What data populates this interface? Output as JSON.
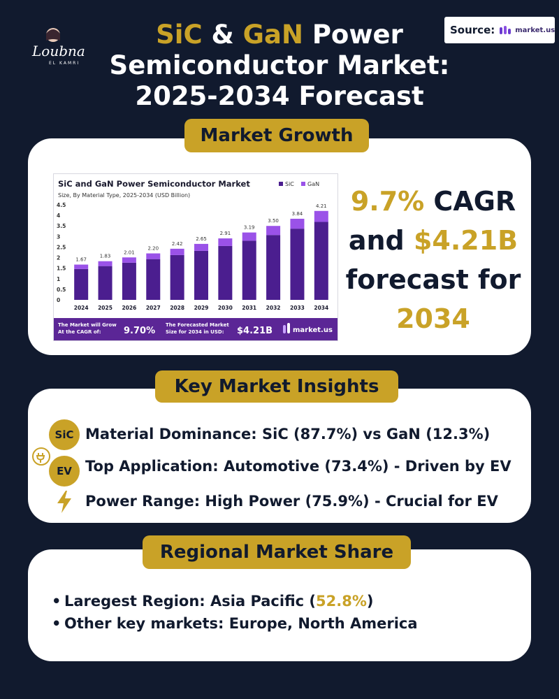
{
  "logo": {
    "script": "Loubna",
    "sub": "EL KAMRI"
  },
  "source": {
    "label": "Source:",
    "logo_text": "market.us"
  },
  "title": {
    "part1_gold": "SiC",
    "part2": " & ",
    "part3_gold": "GaN",
    "part4": " Power",
    "line2": "Semiconductor Market:",
    "line3": "2025-2034 Forecast"
  },
  "sections": {
    "growth": "Market Growth",
    "insights": "Key Market Insights",
    "regional": "Regional Market Share"
  },
  "big_stat": {
    "cagr_value": "9.7%",
    "cagr_label": " CAGR",
    "and": "and ",
    "forecast_value": "$4.21B",
    "forecast_label": "forecast for",
    "year": "2034"
  },
  "insights": [
    {
      "badge": "SiC",
      "icon": "sic-badge-icon",
      "text": "Material Dominance: SiC (87.7%) vs GaN (12.3%)"
    },
    {
      "badge": "EV",
      "icon": "ev-plug-icon",
      "text": "Top Application: Automotive (73.4%) - Driven by EV"
    },
    {
      "badge": "",
      "icon": "lightning-icon",
      "text": "Power Range: High Power (75.9%) - Crucial for EV"
    }
  ],
  "regional": {
    "row1_prefix": "Laregest Region: Asia Pacific (",
    "row1_value": "52.8%",
    "row1_suffix": ")",
    "row2": "Other key markets: Europe, North America",
    "bullet": "•"
  },
  "colors": {
    "background": "#111a2e",
    "gold": "#c9a227",
    "sic": "#4b1e8f",
    "gan": "#9a52e8",
    "banner": "#5b2696"
  },
  "chart_data": {
    "type": "bar",
    "stacked": true,
    "title": "SiC and GaN Power Semiconductor Market",
    "subtitle": "Size, By Material Type, 2025-2034 (USD Billion)",
    "categories": [
      "2024",
      "2025",
      "2026",
      "2027",
      "2028",
      "2029",
      "2030",
      "2031",
      "2032",
      "2033",
      "2034"
    ],
    "totals": [
      1.67,
      1.83,
      2.01,
      2.2,
      2.42,
      2.65,
      2.91,
      3.19,
      3.5,
      3.84,
      4.21
    ],
    "total_labels": [
      "1.67",
      "1.83",
      "2.01",
      "2.20",
      "2.42",
      "2.65",
      "2.91",
      "3.19",
      "3.50",
      "3.84",
      "4.21"
    ],
    "series": [
      {
        "name": "SiC",
        "color": "#4b1e8f",
        "values": [
          1.46,
          1.6,
          1.76,
          1.93,
          2.12,
          2.32,
          2.55,
          2.8,
          3.07,
          3.37,
          3.69
        ]
      },
      {
        "name": "GaN",
        "color": "#9a52e8",
        "values": [
          0.21,
          0.23,
          0.25,
          0.27,
          0.3,
          0.33,
          0.36,
          0.39,
          0.43,
          0.47,
          0.52
        ]
      }
    ],
    "ylim": [
      0,
      4.5
    ],
    "yticks": [
      "4.5",
      "4",
      "3.5",
      "3",
      "2.5",
      "2",
      "1.5",
      "1",
      "0.5",
      "0"
    ],
    "legend_position": "top-right",
    "banner": {
      "cagr_label_1": "The Market will Grow",
      "cagr_label_2": "At the CAGR of:",
      "cagr_value": "9.70%",
      "forecast_label_1": "The Forecasted Market",
      "forecast_label_2": "Size for 2034 in USD:",
      "forecast_value": "$4.21B",
      "brand": "market.us"
    }
  }
}
